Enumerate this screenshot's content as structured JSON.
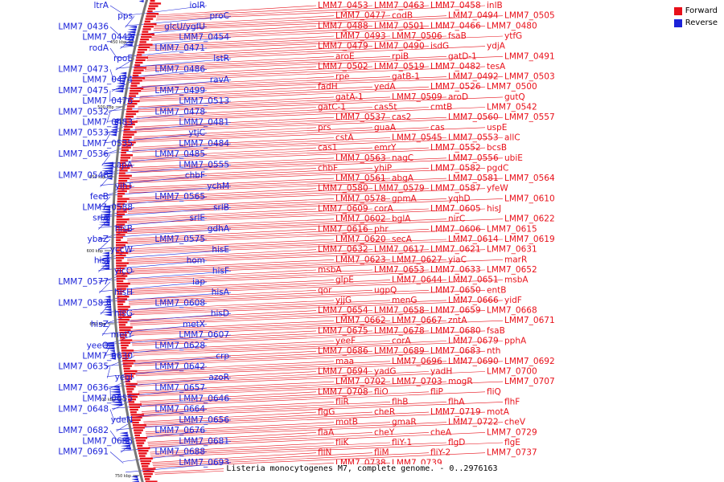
{
  "legend": {
    "forward_label": "Forward",
    "reverse_label": "Reverse",
    "forward_color": "#e8101a",
    "reverse_color": "#1b22d8"
  },
  "caption": "Listeria monocytogenes M7, complete genome. - 0..2976163",
  "tick_labels": [
    "450 kbp",
    "500 kbp",
    "550 kbp",
    "600 kbp",
    "650 kbp",
    "700 kbp",
    "750 kbp"
  ],
  "forward_labels": [
    "LMM7_0453",
    "LMM7_0463",
    "LMM7_0458",
    "inlB",
    "LMM7_0477",
    "codB",
    "LMM7_0494",
    "LMM7_0505",
    "LMM7_0488",
    "LMM7_0501",
    "LMM7_0466",
    "LMM7_0480",
    "LMM7_0493",
    "LMM7_0506",
    "fsaB",
    "ytfG",
    "LMM7_0479",
    "LMM7_0490",
    "isdG",
    "ydjA",
    "aroE",
    "rpiB",
    "gatD-1",
    "LMM7_0491",
    "LMM7_0502",
    "LMM7_0519",
    "LMM7_0482",
    "tesA",
    "rpe",
    "gatB-1",
    "LMM7_0492",
    "LMM7_0503",
    "fadH",
    "yedA",
    "LMM7_0526",
    "LMM7_0500",
    "gatA-1",
    "LMM7_0509",
    "aroD",
    "gutQ",
    "gatC-1",
    "cas5t",
    "cmtB",
    "LMM7_0542",
    "LMM7_0537",
    "cas2",
    "LMM7_0560",
    "LMM7_0557",
    "prs",
    "guaA",
    "cas",
    "uspE",
    "cstA",
    "LMM7_0545",
    "LMM7_0553",
    "allC",
    "cas1",
    "emrY",
    "LMM7_0552",
    "bcsB",
    "LMM7_0563",
    "nagC",
    "LMM7_0556",
    "ubiE",
    "chbF",
    "yhiP",
    "LMM7_0582",
    "pgdC",
    "LMM7_0561",
    "abgA",
    "LMM7_0581",
    "LMM7_0564",
    "LMM7_0580",
    "LMM7_0579",
    "LMM7_0587",
    "yfeW",
    "LMM7_0578",
    "gpmA",
    "yqhD",
    "LMM7_0610",
    "LMM7_0609",
    "corA",
    "LMM7_0605",
    "hisJ",
    "LMM7_0602",
    "bglA",
    "nirC",
    "LMM7_0622",
    "LMM7_0616",
    "phr",
    "LMM7_0606",
    "LMM7_0615",
    "LMM7_0620",
    "secA",
    "LMM7_0614",
    "LMM7_0619",
    "LMM7_0632",
    "LMM7_0617",
    "LMM7_0621",
    "LMM7_0631",
    "LMM7_0623",
    "LMM7_0627",
    "yiaC",
    "marR",
    "msbA",
    "LMM7_0653",
    "LMM7_0633",
    "LMM7_0652",
    "glpE",
    "LMM7_0644",
    "LMM7_0651",
    "msbA",
    "qor",
    "ugpQ",
    "LMM7_0650",
    "entB",
    "yjjG",
    "menG",
    "LMM7_0666",
    "yidF",
    "LMM7_0654",
    "LMM7_0658",
    "LMM7_0659",
    "LMM7_0668",
    "LMM7_0662",
    "LMM7_0667",
    "zntA",
    "LMM7_0671",
    "LMM7_0675",
    "LMM7_0678",
    "LMM7_0680",
    "fsaB",
    "yeeF",
    "corA",
    "LMM7_0679",
    "pphA",
    "LMM7_0686",
    "LMM7_0689",
    "LMM7_0683",
    "nth",
    "maa",
    "LMM7_0696",
    "LMM7_0690",
    "LMM7_0692",
    "LMM7_0694",
    "yadG",
    "yadH",
    "LMM7_0700",
    "LMM7_0702",
    "LMM7_0703",
    "mogR",
    "LMM7_0707",
    "LMM7_0708",
    "fliO",
    "fliP",
    "fliQ",
    "fliR",
    "flhB",
    "flhA",
    "flhF",
    "flgG",
    "cheR",
    "LMM7_0719",
    "motA",
    "motB",
    "gmaR",
    "LMM7_0722",
    "cheV",
    "flaA",
    "cheY",
    "cheA",
    "LMM7_0729",
    "fliK",
    "fliY-1",
    "flgD",
    "flgE",
    "fliN",
    "fliM",
    "fliY-2",
    "LMM7_0737",
    "LMM7_0738",
    "LMM7_0739"
  ],
  "reverse_labels": [
    "iolR",
    "ltrA",
    "proC",
    "pps",
    "glcU/ygfU",
    "LMM7_0436",
    "LMM7_0454",
    "LMM7_0442",
    "LMM7_0471",
    "rodA",
    "lstR",
    "rpoE",
    "LMM7_0486",
    "LMM7_0473",
    "ravA",
    "LMM7_0474",
    "LMM7_0499",
    "LMM7_0475",
    "LMM7_0513",
    "LMM7_0476",
    "LMM7_0478",
    "LMM7_0532",
    "LMM7_0481",
    "LMM7_0483",
    "ytjC",
    "LMM7_0533",
    "LMM7_0484",
    "LMM7_0535",
    "LMM7_0485",
    "LMM7_0536",
    "LMM7_0555",
    "capA",
    "chbF",
    "LMM7_0548",
    "ychM",
    "yihT",
    "LMM7_0565",
    "fecB",
    "srlB",
    "LMM7_0588",
    "srlE",
    "srlA",
    "gdhA",
    "hisB",
    "LMM7_0575",
    "ybaZ",
    "hisE",
    "yccW",
    "hom",
    "hisI",
    "hisF",
    "yicO",
    "iap",
    "LMM7_0577",
    "hisA",
    "hisH",
    "LMM7_0608",
    "LMM7_0583",
    "hisD",
    "hisG",
    "metX",
    "hisZ",
    "LMM7_0607",
    "metY",
    "LMM7_0628",
    "yeeO",
    "crp",
    "LMM7_0630",
    "LMM7_0642",
    "LMM7_0635",
    "azoR",
    "yegI",
    "LMM7_0657",
    "LMM7_0636",
    "LMM7_0646",
    "LMM7_0655",
    "LMM7_0664",
    "LMM7_0648",
    "LMM7_0656",
    "ydeN",
    "LMM7_0676",
    "LMM7_0682",
    "LMM7_0681",
    "LMM7_0685",
    "LMM7_0688",
    "LMM7_0691",
    "LMM7_0693"
  ]
}
